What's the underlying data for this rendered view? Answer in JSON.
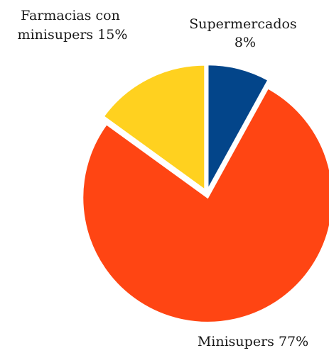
{
  "chart_data": {
    "type": "pie",
    "title": "",
    "slices": [
      {
        "key": "supermercados",
        "line1": "Supermercados",
        "line2": "8%",
        "value": 8,
        "color": "#03458A"
      },
      {
        "key": "minisupers",
        "line1": "Minisupers 77%",
        "line2": "",
        "value": 77,
        "color": "#FF4513"
      },
      {
        "key": "farmacias",
        "line1": "Farmacias con",
        "line2": "minisupers 15%",
        "value": 15,
        "color": "#FFD11F"
      }
    ]
  }
}
